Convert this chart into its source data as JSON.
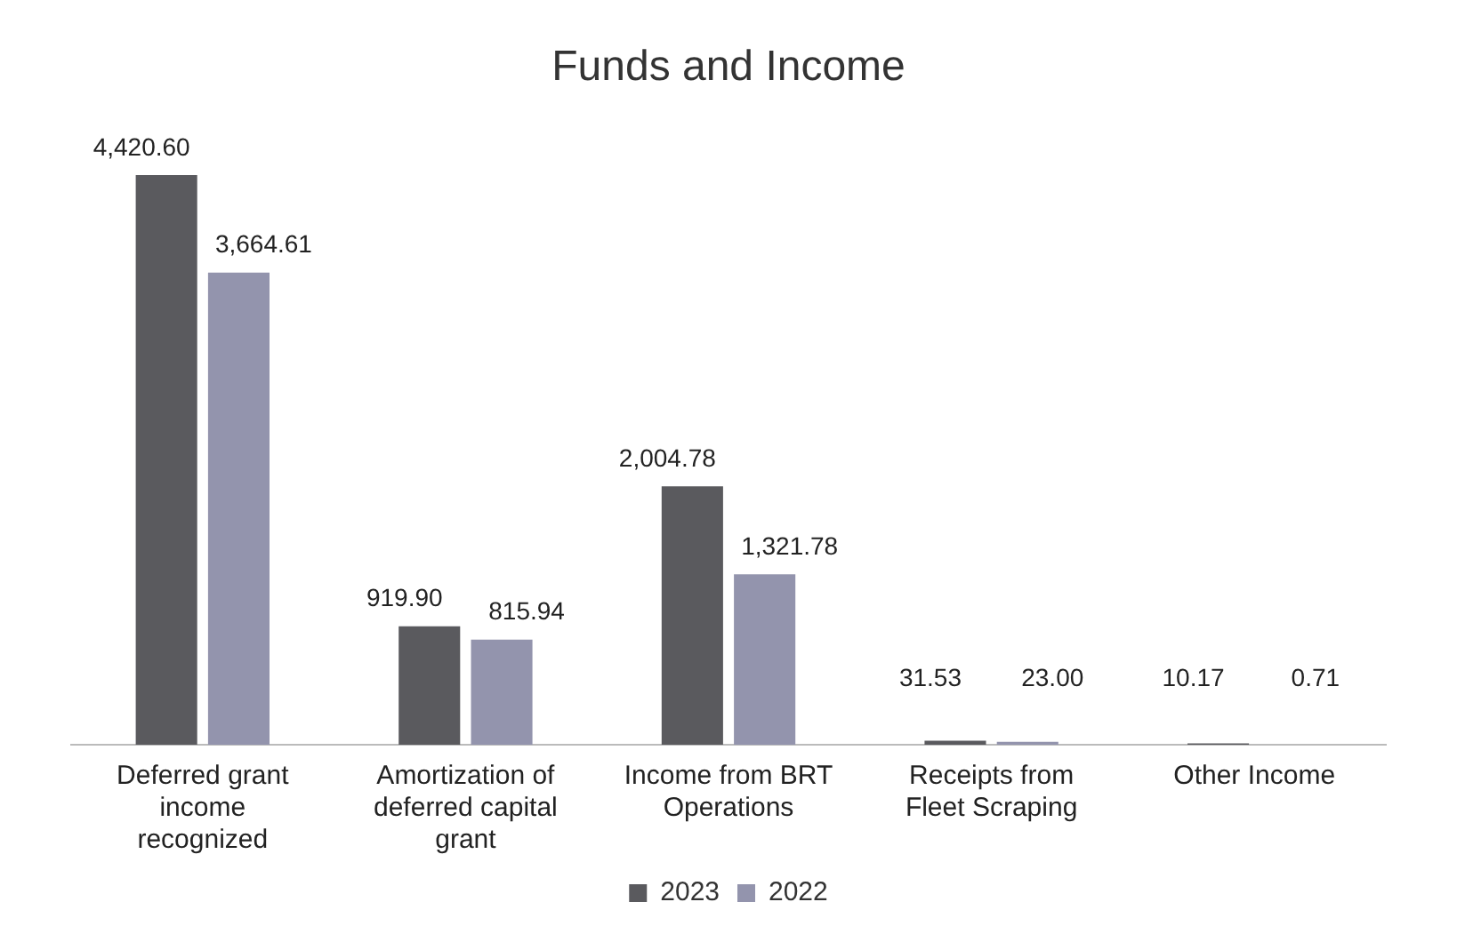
{
  "chart_data": {
    "type": "bar",
    "title": "Funds and Income",
    "categories": [
      "Deferred grant income recognized",
      "Amortization of deferred capital grant",
      "Income from BRT Operations",
      "Receipts from Fleet Scraping",
      "Other Income"
    ],
    "series": [
      {
        "name": "2023",
        "color": "#5a5a5e",
        "values": [
          4420.6,
          919.9,
          2004.78,
          31.53,
          10.17
        ],
        "value_labels": [
          "4,420.60",
          "919.90",
          "2,004.78",
          "31.53",
          "10.17"
        ]
      },
      {
        "name": "2022",
        "color": "#9394ad",
        "values": [
          3664.61,
          815.94,
          1321.78,
          23.0,
          0.71
        ],
        "value_labels": [
          "3,664.61",
          "815.94",
          "1,321.78",
          "23.00",
          "0.71"
        ]
      }
    ],
    "legend": "bottom",
    "grid": false,
    "tick_labels": "x"
  }
}
